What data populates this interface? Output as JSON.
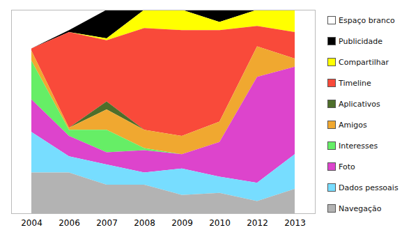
{
  "chart_data": {
    "type": "area",
    "stacked": true,
    "tick_labels": "x",
    "legend": "right",
    "categories": [
      "2004",
      "2006",
      "2007",
      "2008",
      "2009",
      "2010",
      "2012",
      "2013"
    ],
    "ylim": [
      0,
      100
    ],
    "series": [
      {
        "name": "Espaço branco",
        "color": "#ffffff",
        "values": [
          19,
          10,
          0,
          0,
          0,
          0,
          0,
          0
        ]
      },
      {
        "name": "Publicidade",
        "color": "#000000",
        "values": [
          0,
          1,
          14,
          0,
          0,
          6,
          0,
          0
        ]
      },
      {
        "name": "Compartilhar",
        "color": "#ffff00",
        "values": [
          0,
          0,
          1,
          9,
          10,
          4,
          8,
          11
        ]
      },
      {
        "name": "Timeline",
        "color": "#f94a3a",
        "values": [
          1,
          47,
          30,
          50,
          52,
          45,
          10,
          13
        ]
      },
      {
        "name": "Aplicativos",
        "color": "#4e6e2a",
        "values": [
          0,
          0,
          4,
          0,
          0,
          0,
          0,
          0
        ]
      },
      {
        "name": "Amigos",
        "color": "#f0a830",
        "values": [
          5,
          1,
          10,
          9,
          9,
          10,
          15,
          4
        ]
      },
      {
        "name": "Interesses",
        "color": "#66ee66",
        "values": [
          19,
          3,
          11,
          1,
          0,
          0,
          0,
          0
        ]
      },
      {
        "name": "Foto",
        "color": "#dd44cc",
        "values": [
          16,
          10,
          6,
          11,
          7,
          17,
          52,
          43
        ]
      },
      {
        "name": "Dados pessoais",
        "color": "#77ddff",
        "values": [
          20,
          8,
          10,
          6,
          13,
          8,
          9,
          17
        ]
      },
      {
        "name": "Navegação",
        "color": "#b3b3b3",
        "values": [
          20,
          20,
          14,
          14,
          9,
          10,
          6,
          12
        ]
      }
    ]
  }
}
